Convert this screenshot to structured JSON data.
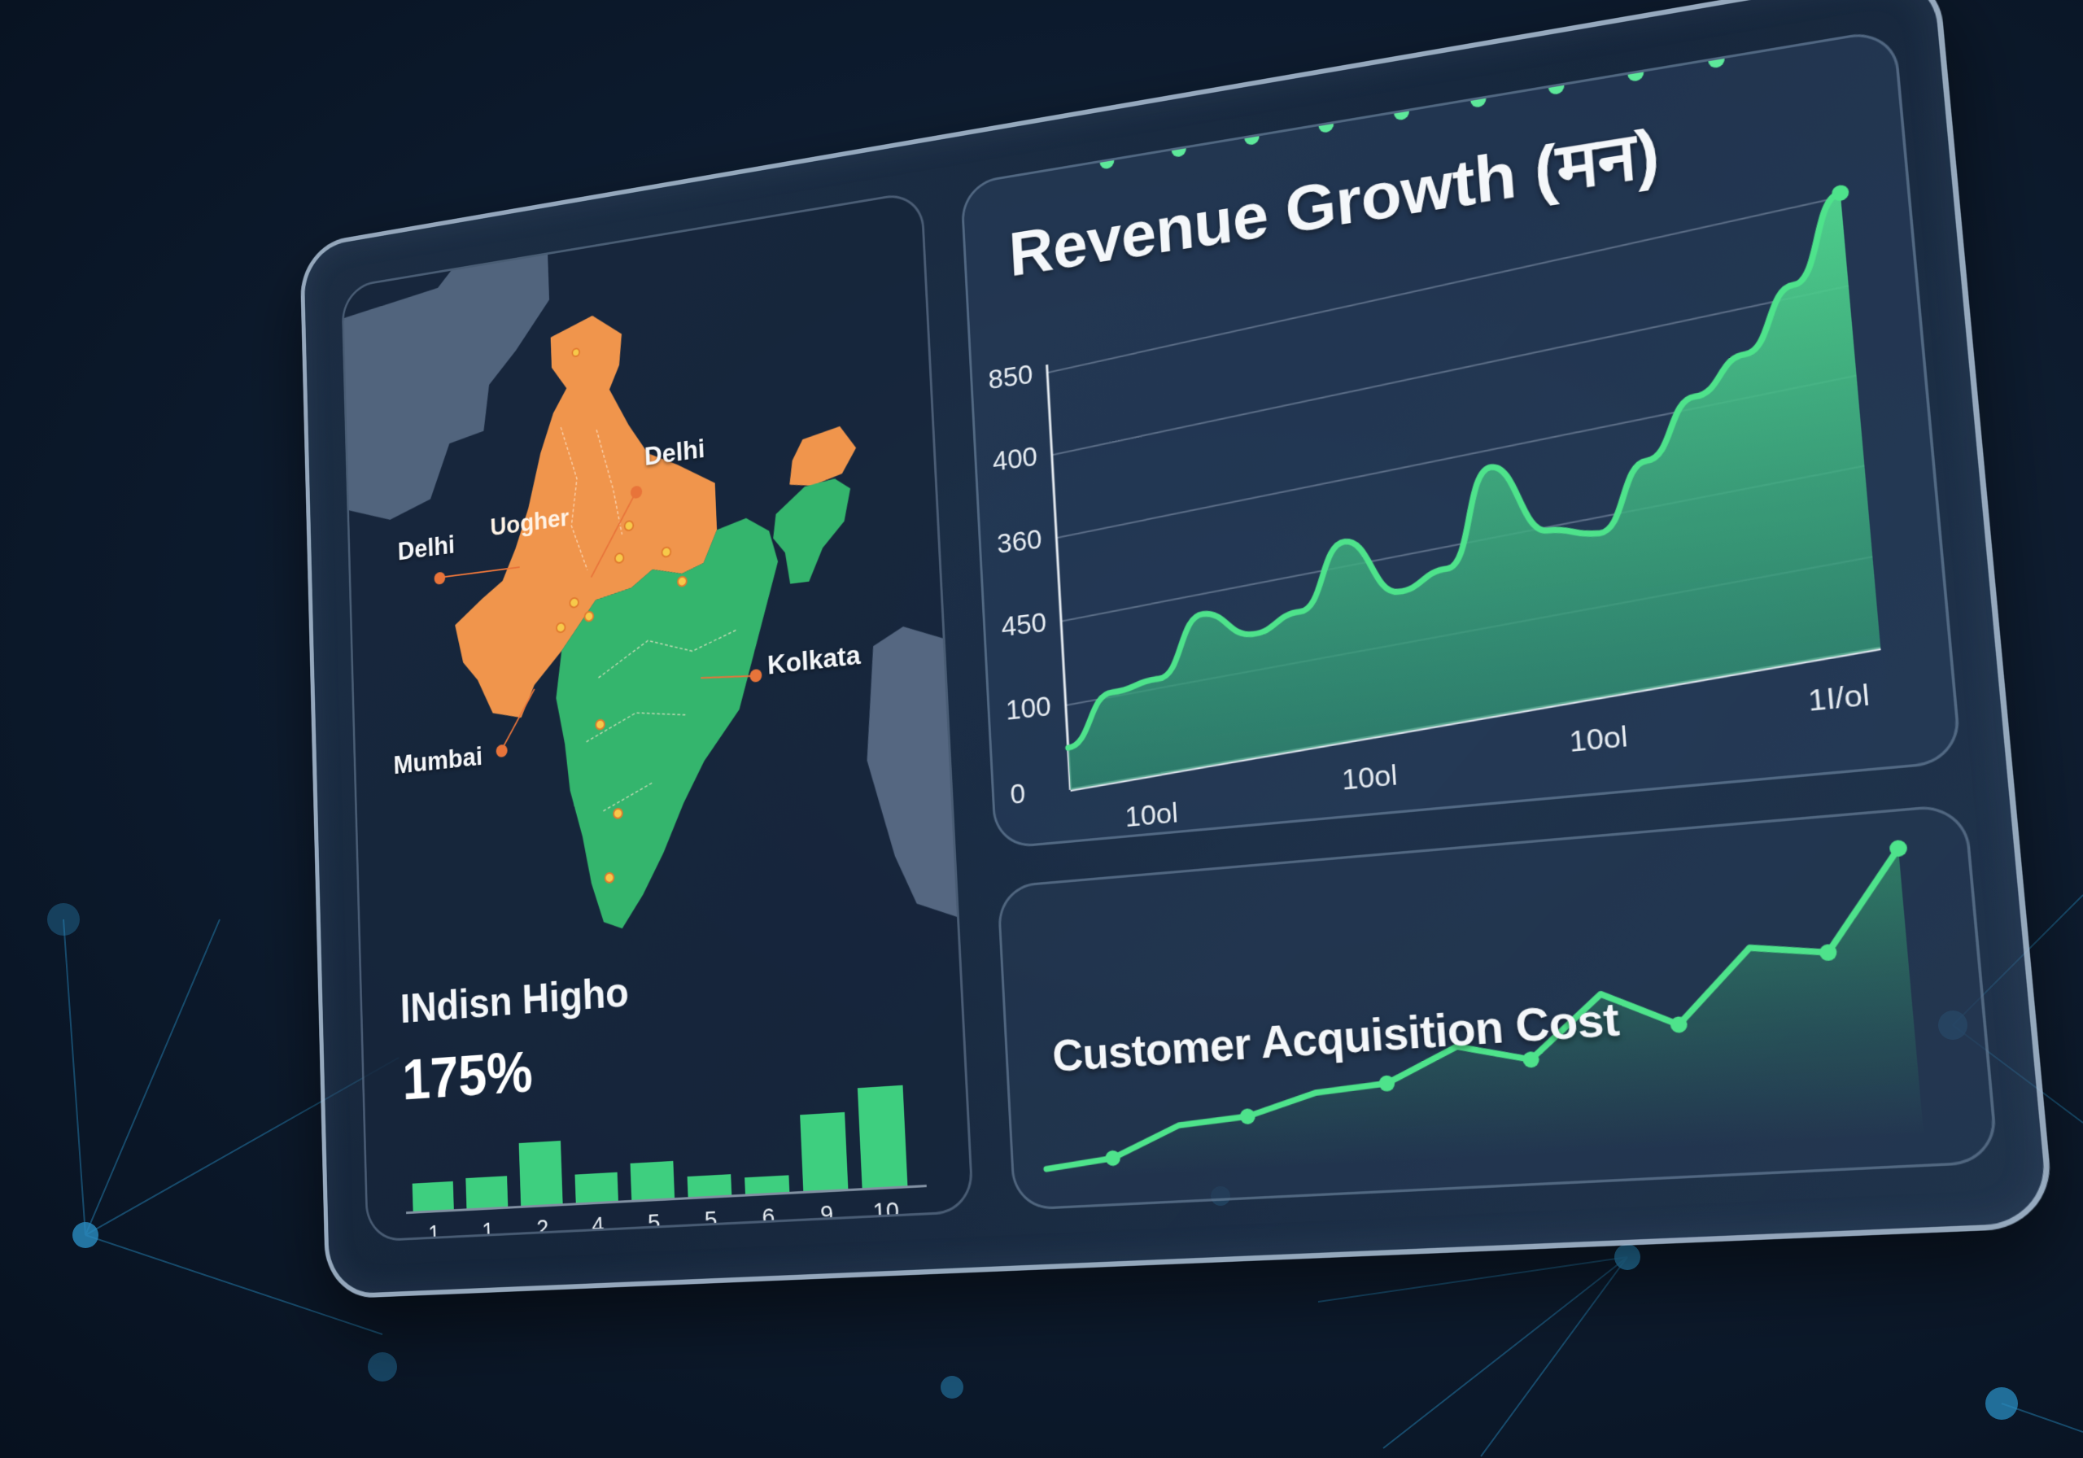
{
  "colors": {
    "background": "#0e1d31",
    "accent_green": "#3ecf7f",
    "line_green": "#4ee38b",
    "map_orange": "#f0954c",
    "map_green": "#34b56d",
    "map_land_gray": "#5b6e88",
    "city_dot": "#e8743a",
    "text": "#f4f7fa"
  },
  "map_panel": {
    "region_label": "Uogher",
    "cities": [
      {
        "name": "Delhi",
        "position": "north-east of center"
      },
      {
        "name": "Delhi",
        "position": "west"
      },
      {
        "name": "Mumbai",
        "position": "south-west"
      },
      {
        "name": "Kolkata",
        "position": "east"
      }
    ],
    "subtitle": "INdisn Higho",
    "kpi_value": "175%"
  },
  "revenue_panel": {
    "title": "Revenue Growth (मन)"
  },
  "cac_panel": {
    "title": "Customer Acquisition Cost"
  },
  "chart_data": [
    {
      "type": "area",
      "title": "Revenue Growth (मन)",
      "xlabel": "",
      "ylabel": "",
      "y_tick_labels": [
        "850",
        "400",
        "360",
        "450",
        "100",
        "0"
      ],
      "x_tick_labels": [
        "10ol",
        "10ol",
        "10ol",
        "1I/ol"
      ],
      "grid": true,
      "series": [
        {
          "name": "Revenue (area, jagged)",
          "x": [
            0,
            1,
            2,
            3,
            4,
            5,
            6,
            7,
            8,
            9,
            10,
            11,
            12,
            13,
            14,
            15,
            16
          ],
          "values": [
            100,
            220,
            240,
            380,
            320,
            360,
            510,
            380,
            420,
            640,
            480,
            460,
            610,
            740,
            820,
            960,
            1150
          ]
        },
        {
          "name": "Revenue trend (smooth, with markers)",
          "x": [
            0,
            1,
            2,
            3,
            4,
            5,
            6,
            7,
            8,
            9
          ],
          "values": [
            100,
            230,
            380,
            430,
            500,
            540,
            560,
            760,
            600,
            620
          ]
        }
      ]
    },
    {
      "type": "bar",
      "title": "INdisn Higho",
      "kpi": "175%",
      "categories": [
        "1",
        "1",
        "2",
        "4",
        "5",
        "5",
        "6",
        "9",
        "10"
      ],
      "values": [
        25,
        27,
        55,
        25,
        32,
        18,
        14,
        65,
        85
      ],
      "xlabel": "",
      "ylabel": "",
      "grid": false
    },
    {
      "type": "line",
      "title": "Customer Acquisition Cost",
      "x": [
        0,
        1,
        2,
        3,
        4,
        5,
        6,
        7,
        8,
        9,
        10,
        11,
        12
      ],
      "values": [
        5,
        8,
        20,
        22,
        30,
        32,
        45,
        38,
        62,
        48,
        76,
        72,
        110
      ],
      "grid": false
    }
  ]
}
